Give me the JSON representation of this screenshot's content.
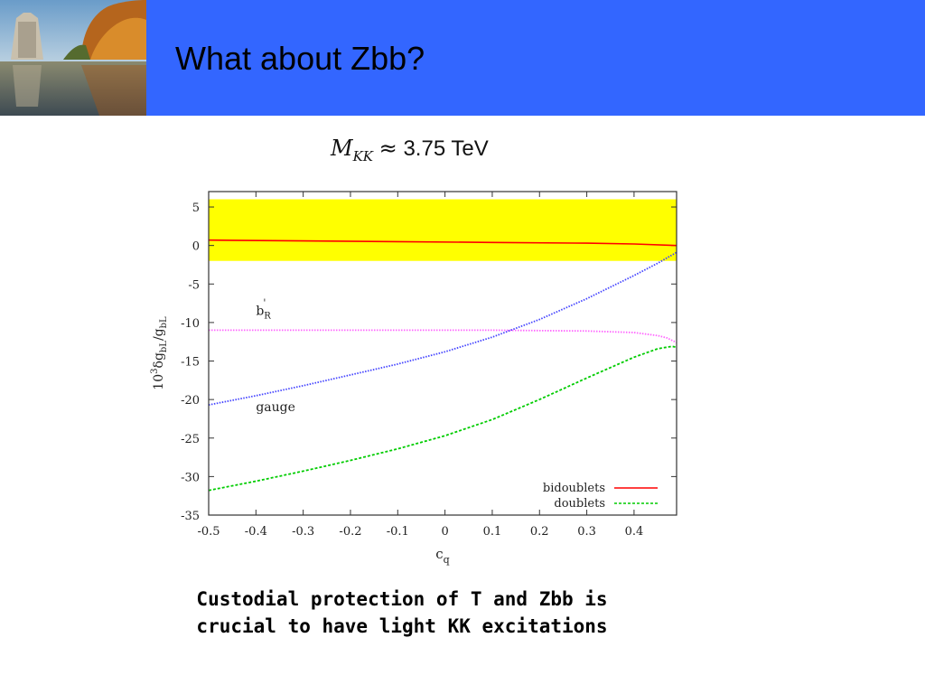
{
  "slide": {
    "title": "What about Zbb?",
    "header_color": "#3366ff",
    "photo_icon": "lab-building-lake-photo"
  },
  "formula": {
    "lhs": "M",
    "lhs_sub": "KK",
    "relation": "≈",
    "rhs": "3.75 TeV"
  },
  "caption": {
    "line1": "Custodial protection of T and Zbb is",
    "line2": "crucial to have light KK excitations"
  },
  "chart_data": {
    "type": "line",
    "xlabel": "c_q",
    "ylabel": "10^3 δg_bL/g_bL",
    "xlim": [
      -0.5,
      0.49
    ],
    "ylim": [
      -35,
      7
    ],
    "xticks": [
      -0.5,
      -0.4,
      -0.3,
      -0.2,
      -0.1,
      0,
      0.1,
      0.2,
      0.3,
      0.4
    ],
    "xtick_labels": [
      "-0.5",
      "-0.4",
      "-0.3",
      "-0.2",
      "-0.1",
      "0",
      "0.1",
      "0.2",
      "0.3",
      "0.4"
    ],
    "yticks": [
      5,
      0,
      -5,
      -10,
      -15,
      -20,
      -25,
      -30,
      -35
    ],
    "ytick_labels": [
      "5",
      "0",
      "-5",
      "-10",
      "-15",
      "-20",
      "-25",
      "-30",
      "-35"
    ],
    "band": {
      "y0": -2,
      "y1": 6,
      "color": "#ffff00"
    },
    "legend_position": "bottom-right",
    "series": [
      {
        "name": "bidoublets",
        "in_legend": true,
        "color": "#ff0000",
        "style": "solid",
        "x": [
          -0.5,
          -0.3,
          -0.1,
          0.1,
          0.3,
          0.4,
          0.49
        ],
        "y": [
          0.7,
          0.6,
          0.5,
          0.4,
          0.3,
          0.2,
          0.0
        ]
      },
      {
        "name": "doublets",
        "in_legend": true,
        "color": "#00cc00",
        "style": "dashed",
        "x": [
          -0.5,
          -0.4,
          -0.3,
          -0.2,
          -0.1,
          0.0,
          0.1,
          0.2,
          0.3,
          0.4,
          0.45,
          0.48,
          0.49
        ],
        "y": [
          -31.8,
          -30.6,
          -29.3,
          -27.9,
          -26.4,
          -24.7,
          -22.6,
          -20.0,
          -17.2,
          -14.5,
          -13.4,
          -13.1,
          -13.2
        ]
      },
      {
        "name": "gauge",
        "in_legend": false,
        "color": "#4444ff",
        "style": "dotted",
        "x": [
          -0.5,
          -0.4,
          -0.3,
          -0.2,
          -0.1,
          0.0,
          0.1,
          0.2,
          0.3,
          0.4,
          0.45,
          0.49
        ],
        "y": [
          -20.7,
          -19.5,
          -18.2,
          -16.8,
          -15.4,
          -13.8,
          -11.9,
          -9.6,
          -6.9,
          -3.9,
          -2.3,
          -0.9
        ]
      },
      {
        "name": "b'_R",
        "in_legend": false,
        "color": "#ff66ff",
        "style": "dotted",
        "x": [
          -0.5,
          -0.3,
          -0.1,
          0.1,
          0.3,
          0.4,
          0.45,
          0.47,
          0.49
        ],
        "y": [
          -11.0,
          -11.0,
          -11.0,
          -11.0,
          -11.1,
          -11.3,
          -11.7,
          -12.0,
          -12.6
        ]
      }
    ],
    "annotations": [
      {
        "text": "b",
        "sub": "R",
        "sup": "'",
        "x": -0.4,
        "y": -9.0
      },
      {
        "text": "gauge",
        "x": -0.4,
        "y": -21.5
      }
    ],
    "legend": [
      {
        "label": "bidoublets",
        "color": "#ff0000",
        "style": "solid"
      },
      {
        "label": "doublets",
        "color": "#00cc00",
        "style": "dashed"
      }
    ]
  }
}
